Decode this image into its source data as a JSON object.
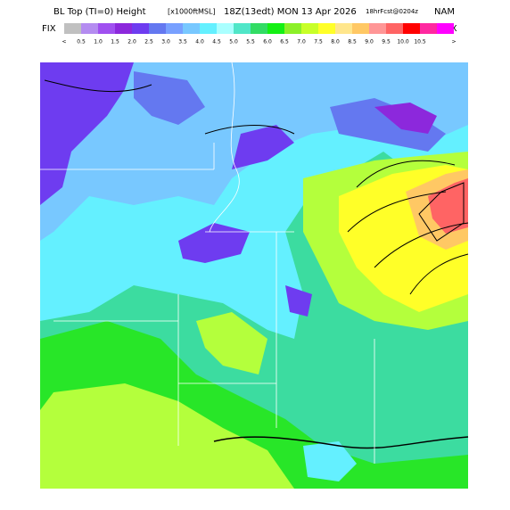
{
  "header": {
    "title": "BL Top (TI=0) Height",
    "units": "[x1000ftMSL]",
    "valid": "18Z(13edt) MON 13 Apr 2026",
    "forecast": "18hrFcst@0204z",
    "model": "NAM"
  },
  "colorbar": {
    "left_label": "FIX",
    "right_label": "FIX",
    "low_arrow": "<",
    "high_arrow": ">",
    "colors": [
      "#c0c0c0",
      "#b48cf0",
      "#a050f0",
      "#8c28dc",
      "#6e3cf0",
      "#6478f0",
      "#78a0ff",
      "#78c8ff",
      "#64f0ff",
      "#aaffff",
      "#50e6c8",
      "#32dc64",
      "#14f014",
      "#8cf028",
      "#c8ff28",
      "#ffff28",
      "#ffe68c",
      "#ffc864",
      "#ff9696",
      "#ff6464",
      "#ff0000",
      "#ff28a0",
      "#ff00ff"
    ],
    "labels": [
      "0.5",
      "1.0",
      "1.5",
      "2.0",
      "2.5",
      "3.0",
      "3.5",
      "4.0",
      "4.5",
      "5.0",
      "5.5",
      "6.0",
      "6.5",
      "7.0",
      "7.5",
      "8.0",
      "8.5",
      "9.0",
      "9.5",
      "10.0",
      "10.5"
    ]
  }
}
